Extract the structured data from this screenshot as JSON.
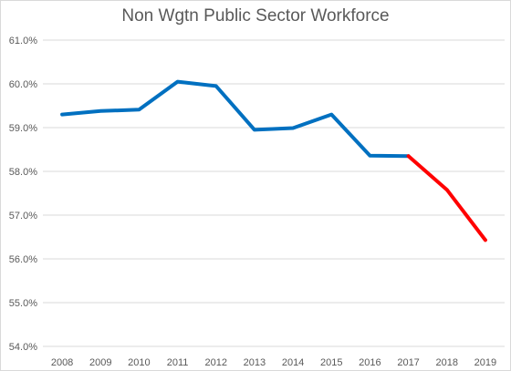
{
  "chart_data": {
    "type": "line",
    "title": "Non Wgtn Public Sector Workforce",
    "xlabel": "",
    "ylabel": "",
    "categories": [
      "2008",
      "2009",
      "2010",
      "2011",
      "2012",
      "2013",
      "2014",
      "2015",
      "2016",
      "2017",
      "2018",
      "2019"
    ],
    "y_ticks": [
      "54.0%",
      "55.0%",
      "56.0%",
      "57.0%",
      "58.0%",
      "59.0%",
      "60.0%",
      "61.0%"
    ],
    "ylim": [
      54.0,
      61.0
    ],
    "grid": true,
    "legend": "none",
    "series": [
      {
        "values": [
          59.3,
          59.38,
          59.41,
          60.05,
          59.95,
          58.95,
          58.99,
          59.3,
          58.36,
          58.35,
          null,
          null
        ],
        "color": "#0070c0"
      },
      {
        "values": [
          null,
          null,
          null,
          null,
          null,
          null,
          null,
          null,
          null,
          58.35,
          57.58,
          56.43
        ],
        "color": "#ff0000"
      }
    ]
  }
}
